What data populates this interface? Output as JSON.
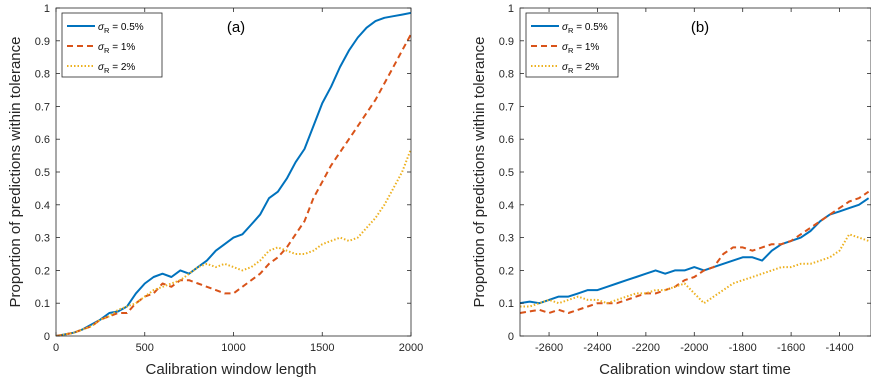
{
  "chart_data": [
    {
      "type": "line",
      "panel_label": "(a)",
      "xlabel": "Calibration window length",
      "ylabel": "Proportion of predictions within tolerance",
      "xlim": [
        0,
        2000
      ],
      "ylim": [
        0,
        1
      ],
      "xticks": [
        0,
        500,
        1000,
        1500,
        2000
      ],
      "yticks": [
        0,
        0.1,
        0.2,
        0.3,
        0.4,
        0.5,
        0.6,
        0.7,
        0.8,
        0.9,
        1
      ],
      "ytick_labels": [
        "0",
        "0.1",
        "0.2",
        "0.3",
        "0.4",
        "0.5",
        "0.6",
        "0.7",
        "0.8",
        "0.9",
        "1"
      ],
      "grid": false,
      "legend_position": "top-left",
      "series": [
        {
          "name": "σR = 0.5%",
          "legend_symbol": "σ",
          "legend_sub": "R",
          "legend_value": " = 0.5%",
          "color": "#0072BD",
          "dash": "solid",
          "x": [
            0,
            50,
            100,
            150,
            200,
            250,
            300,
            350,
            400,
            450,
            500,
            550,
            600,
            650,
            700,
            750,
            800,
            850,
            900,
            950,
            1000,
            1050,
            1100,
            1150,
            1200,
            1250,
            1300,
            1350,
            1400,
            1450,
            1500,
            1550,
            1600,
            1650,
            1700,
            1750,
            1800,
            1850,
            1900,
            1950,
            2000
          ],
          "y": [
            0,
            0.005,
            0.01,
            0.02,
            0.035,
            0.05,
            0.07,
            0.075,
            0.09,
            0.13,
            0.16,
            0.18,
            0.19,
            0.18,
            0.2,
            0.19,
            0.21,
            0.23,
            0.26,
            0.28,
            0.3,
            0.31,
            0.34,
            0.37,
            0.42,
            0.44,
            0.48,
            0.53,
            0.57,
            0.64,
            0.71,
            0.76,
            0.82,
            0.87,
            0.91,
            0.94,
            0.96,
            0.97,
            0.975,
            0.98,
            0.985
          ]
        },
        {
          "name": "σR = 1%",
          "legend_symbol": "σ",
          "legend_sub": "R",
          "legend_value": " = 1%",
          "color": "#D95319",
          "dash": "dashed",
          "x": [
            0,
            50,
            100,
            150,
            200,
            250,
            300,
            350,
            400,
            450,
            500,
            550,
            600,
            650,
            700,
            750,
            800,
            850,
            900,
            950,
            1000,
            1050,
            1100,
            1150,
            1200,
            1250,
            1300,
            1350,
            1400,
            1450,
            1500,
            1550,
            1600,
            1650,
            1700,
            1750,
            1800,
            1850,
            1900,
            1950,
            2000
          ],
          "y": [
            0,
            0.005,
            0.01,
            0.02,
            0.03,
            0.05,
            0.06,
            0.07,
            0.07,
            0.1,
            0.12,
            0.13,
            0.16,
            0.15,
            0.17,
            0.17,
            0.16,
            0.15,
            0.14,
            0.13,
            0.13,
            0.15,
            0.17,
            0.19,
            0.22,
            0.24,
            0.27,
            0.31,
            0.35,
            0.42,
            0.47,
            0.52,
            0.56,
            0.6,
            0.64,
            0.68,
            0.72,
            0.77,
            0.82,
            0.87,
            0.92
          ]
        },
        {
          "name": "σR = 2%",
          "legend_symbol": "σ",
          "legend_sub": "R",
          "legend_value": " = 2%",
          "color": "#EDB120",
          "dash": "dotted",
          "x": [
            0,
            50,
            100,
            150,
            200,
            250,
            300,
            350,
            400,
            450,
            500,
            550,
            600,
            650,
            700,
            750,
            800,
            850,
            900,
            950,
            1000,
            1050,
            1100,
            1150,
            1200,
            1250,
            1300,
            1350,
            1400,
            1450,
            1500,
            1550,
            1600,
            1650,
            1700,
            1750,
            1800,
            1850,
            1900,
            1950,
            2000
          ],
          "y": [
            0,
            0.005,
            0.01,
            0.02,
            0.03,
            0.05,
            0.06,
            0.08,
            0.09,
            0.1,
            0.12,
            0.14,
            0.15,
            0.16,
            0.17,
            0.19,
            0.21,
            0.22,
            0.21,
            0.22,
            0.21,
            0.2,
            0.21,
            0.23,
            0.26,
            0.27,
            0.26,
            0.25,
            0.25,
            0.26,
            0.28,
            0.29,
            0.3,
            0.29,
            0.3,
            0.33,
            0.36,
            0.4,
            0.45,
            0.5,
            0.57
          ]
        }
      ]
    },
    {
      "type": "line",
      "panel_label": "(b)",
      "xlabel": "Calibration window start time",
      "ylabel": "Proportion of predictions within tolerance",
      "xlim": [
        -2720,
        -1270
      ],
      "ylim": [
        0,
        1
      ],
      "xticks": [
        -2600,
        -2400,
        -2200,
        -2000,
        -1800,
        -1600,
        -1400
      ],
      "yticks": [
        0,
        0.1,
        0.2,
        0.3,
        0.4,
        0.5,
        0.6,
        0.7,
        0.8,
        0.9,
        1
      ],
      "ytick_labels": [
        "0",
        "0.1",
        "0.2",
        "0.3",
        "0.4",
        "0.5",
        "0.6",
        "0.7",
        "0.8",
        "0.9",
        "1"
      ],
      "grid": false,
      "legend_position": "top-left",
      "series": [
        {
          "name": "σR = 0.5%",
          "legend_symbol": "σ",
          "legend_sub": "R",
          "legend_value": " = 0.5%",
          "color": "#0072BD",
          "dash": "solid",
          "x": [
            -2720,
            -2680,
            -2640,
            -2600,
            -2560,
            -2520,
            -2480,
            -2440,
            -2400,
            -2360,
            -2320,
            -2280,
            -2240,
            -2200,
            -2160,
            -2120,
            -2080,
            -2040,
            -2000,
            -1960,
            -1920,
            -1880,
            -1840,
            -1800,
            -1760,
            -1720,
            -1680,
            -1640,
            -1600,
            -1560,
            -1520,
            -1480,
            -1440,
            -1400,
            -1360,
            -1320,
            -1280
          ],
          "y": [
            0.1,
            0.105,
            0.1,
            0.11,
            0.12,
            0.12,
            0.13,
            0.14,
            0.14,
            0.15,
            0.16,
            0.17,
            0.18,
            0.19,
            0.2,
            0.19,
            0.2,
            0.2,
            0.21,
            0.2,
            0.21,
            0.22,
            0.23,
            0.24,
            0.24,
            0.23,
            0.26,
            0.28,
            0.29,
            0.3,
            0.32,
            0.35,
            0.37,
            0.38,
            0.39,
            0.4,
            0.42
          ]
        },
        {
          "name": "σR = 1%",
          "legend_symbol": "σ",
          "legend_sub": "R",
          "legend_value": " = 1%",
          "color": "#D95319",
          "dash": "dashed",
          "x": [
            -2720,
            -2680,
            -2640,
            -2600,
            -2560,
            -2520,
            -2480,
            -2440,
            -2400,
            -2360,
            -2320,
            -2280,
            -2240,
            -2200,
            -2160,
            -2120,
            -2080,
            -2040,
            -2000,
            -1960,
            -1920,
            -1880,
            -1840,
            -1800,
            -1760,
            -1720,
            -1680,
            -1640,
            -1600,
            -1560,
            -1520,
            -1480,
            -1440,
            -1400,
            -1360,
            -1320,
            -1280
          ],
          "y": [
            0.07,
            0.075,
            0.08,
            0.07,
            0.08,
            0.07,
            0.08,
            0.09,
            0.1,
            0.1,
            0.1,
            0.11,
            0.12,
            0.13,
            0.13,
            0.14,
            0.15,
            0.17,
            0.18,
            0.2,
            0.21,
            0.25,
            0.27,
            0.27,
            0.26,
            0.27,
            0.28,
            0.28,
            0.29,
            0.31,
            0.33,
            0.35,
            0.37,
            0.39,
            0.41,
            0.42,
            0.44
          ]
        },
        {
          "name": "σR = 2%",
          "legend_symbol": "σ",
          "legend_sub": "R",
          "legend_value": " = 2%",
          "color": "#EDB120",
          "dash": "dotted",
          "x": [
            -2720,
            -2680,
            -2640,
            -2600,
            -2560,
            -2520,
            -2480,
            -2440,
            -2400,
            -2360,
            -2320,
            -2280,
            -2240,
            -2200,
            -2160,
            -2120,
            -2080,
            -2040,
            -2000,
            -1960,
            -1920,
            -1880,
            -1840,
            -1800,
            -1760,
            -1720,
            -1680,
            -1640,
            -1600,
            -1560,
            -1520,
            -1480,
            -1440,
            -1400,
            -1360,
            -1320,
            -1280
          ],
          "y": [
            0.09,
            0.09,
            0.1,
            0.11,
            0.1,
            0.11,
            0.12,
            0.11,
            0.11,
            0.1,
            0.11,
            0.12,
            0.13,
            0.13,
            0.14,
            0.14,
            0.15,
            0.16,
            0.13,
            0.1,
            0.12,
            0.14,
            0.16,
            0.17,
            0.18,
            0.19,
            0.2,
            0.21,
            0.21,
            0.22,
            0.22,
            0.23,
            0.24,
            0.26,
            0.31,
            0.3,
            0.29
          ]
        }
      ]
    }
  ]
}
